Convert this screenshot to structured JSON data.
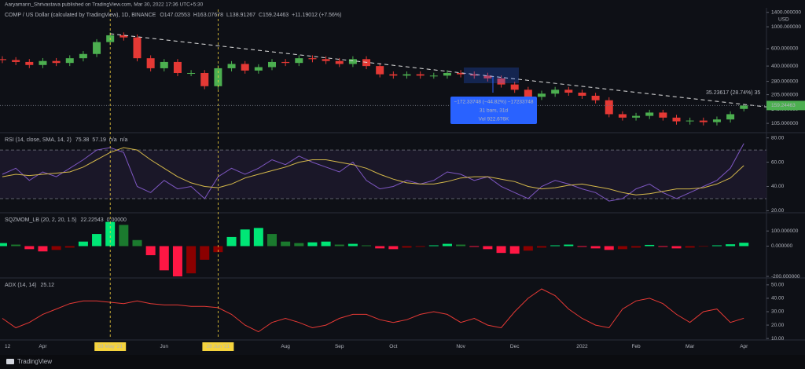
{
  "header": "Aaryamann_Shrivastava published on TradingView.com, Mar 30, 2022 17:36 UTC+5:30",
  "footer": "TradingView",
  "chart_data": [
    {
      "type": "candlestick",
      "title": "COMP / US Dollar (calculated by TradingView), 1D, BINANCE",
      "legend_values": [
        "O147.02553",
        "H163.07678",
        "L138.91267",
        "C159.24463",
        "+11.19012 (+7.56%)"
      ],
      "legend_colors": [
        "#4caf50",
        "#4caf50",
        "#4caf50",
        "#4caf50",
        "#4caf50"
      ],
      "categories": [
        "12",
        null,
        null,
        "Apr",
        null,
        null,
        null,
        null,
        "03 May '21",
        null,
        null,
        null,
        "Jun",
        null,
        null,
        null,
        "28 Jun '21",
        null,
        null,
        null,
        null,
        "Aug",
        null,
        null,
        null,
        "Sep",
        null,
        null,
        null,
        "Oct",
        null,
        null,
        null,
        null,
        "Nov",
        null,
        null,
        null,
        "Dec",
        null,
        null,
        null,
        null,
        "2022",
        null,
        null,
        null,
        "Feb",
        null,
        null,
        null,
        "Mar",
        null,
        null,
        null,
        "Apr"
      ],
      "highlight": [
        8,
        16
      ],
      "highlight_color": "#f5d33d",
      "open": [
        470,
        460,
        440,
        410,
        450,
        430,
        480,
        530,
        700,
        820,
        780,
        480,
        380,
        440,
        340,
        340,
        250,
        380,
        420,
        360,
        390,
        440,
        430,
        480,
        470,
        450,
        420,
        470,
        400,
        330,
        320,
        330,
        320,
        320,
        340,
        330,
        320,
        300,
        260,
        230,
        195,
        210,
        230,
        215,
        200,
        180,
        130,
        120,
        125,
        135,
        120,
        110,
        112,
        108,
        115,
        147.02553
      ],
      "high": [
        503,
        492,
        471,
        482,
        482,
        514,
        567,
        749,
        877,
        877,
        835,
        514,
        471,
        471,
        364,
        364,
        407,
        449,
        449,
        417,
        471,
        471,
        514,
        514,
        503,
        482,
        503,
        503,
        428,
        353,
        353,
        353,
        342,
        364,
        364,
        353,
        342,
        321,
        278,
        246,
        225,
        246,
        246,
        230,
        214,
        193,
        139,
        134,
        144,
        144,
        128,
        120,
        120,
        123,
        139,
        163.07678
      ],
      "low": [
        428,
        409,
        381,
        381,
        400,
        400,
        446,
        493,
        651,
        725,
        446,
        353,
        353,
        316,
        316,
        233,
        233,
        353,
        335,
        335,
        363,
        400,
        400,
        437,
        419,
        391,
        391,
        372,
        307,
        298,
        298,
        298,
        298,
        298,
        307,
        298,
        279,
        242,
        214,
        181,
        181,
        195,
        200,
        186,
        167,
        121,
        112,
        112,
        116,
        112,
        102,
        102,
        100,
        100,
        107,
        138.91267
      ],
      "close": [
        460,
        440,
        410,
        450,
        430,
        480,
        530,
        700,
        820,
        780,
        480,
        380,
        440,
        340,
        340,
        250,
        380,
        420,
        360,
        390,
        440,
        430,
        480,
        470,
        450,
        420,
        470,
        400,
        330,
        320,
        330,
        320,
        320,
        340,
        330,
        320,
        300,
        260,
        230,
        195,
        210,
        230,
        215,
        200,
        180,
        130,
        120,
        125,
        135,
        120,
        110,
        112,
        108,
        115,
        130,
        159.24463
      ],
      "up_color": "#4caf50",
      "down_color": "#e53935",
      "log_scale": true,
      "ylim": [
        86,
        1500
      ],
      "yticks": [
        {
          "value": 1400,
          "label": "1400.000000"
        },
        {
          "value": 1000,
          "label": "1000.000000"
        },
        {
          "value": 600,
          "label": "600.000000"
        },
        {
          "value": 400,
          "label": "400.000000"
        },
        {
          "value": 280,
          "label": "280.000000"
        },
        {
          "value": 205,
          "label": "205.000000"
        },
        {
          "value": 145,
          "label": "145.000000"
        },
        {
          "value": 105,
          "label": "105.000000"
        }
      ],
      "y_unit": "USD",
      "last_price_label": "159.24463",
      "trendline": {
        "x": [
          8,
          56.7
        ],
        "y": [
          850,
          154
        ],
        "color": "#e0e0e0"
      },
      "trend_label": "35.23617 (28.74%) 35",
      "measure": {
        "lines": [
          "−172.33748 (−44.82%) −17233748",
          "31 bars, 31d",
          "Vol 922.676K"
        ],
        "color": "#2962ff"
      },
      "grid": false
    },
    {
      "type": "line",
      "title": "RSI (14, close, SMA, 14, 2)",
      "legend_values": [
        "75.38",
        "57.19",
        "n/a",
        "n/a"
      ],
      "legend_colors": [
        "#7e57c2",
        "#d4b84a",
        "#787b86",
        "#787b86"
      ],
      "series": [
        {
          "color": "#7e57c2",
          "values": [
            50,
            55,
            45,
            52,
            48,
            55,
            62,
            70,
            72,
            68,
            40,
            35,
            45,
            38,
            40,
            30,
            48,
            55,
            50,
            55,
            62,
            58,
            65,
            60,
            56,
            52,
            60,
            45,
            38,
            40,
            45,
            42,
            45,
            52,
            50,
            45,
            48,
            40,
            35,
            30,
            40,
            45,
            42,
            38,
            35,
            28,
            30,
            38,
            42,
            35,
            30,
            35,
            40,
            45,
            55,
            75.38
          ]
        },
        {
          "color": "#d4b84a",
          "values": [
            48,
            50,
            49,
            50,
            51,
            52,
            56,
            62,
            68,
            72,
            70,
            62,
            55,
            48,
            43,
            40,
            39,
            42,
            47,
            50,
            53,
            56,
            60,
            62,
            62,
            60,
            58,
            55,
            50,
            46,
            43,
            42,
            42,
            44,
            47,
            48,
            48,
            46,
            44,
            40,
            38,
            39,
            41,
            42,
            40,
            38,
            35,
            33,
            34,
            36,
            38,
            38,
            39,
            42,
            47,
            57.19
          ]
        }
      ],
      "bands": [
        70,
        30
      ],
      "band_fill": "#1a1728",
      "ylim": [
        19,
        83
      ],
      "yticks": [
        {
          "value": 80,
          "label": "80.00"
        },
        {
          "value": 60,
          "label": "60.00"
        },
        {
          "value": 40,
          "label": "40.00"
        },
        {
          "value": 20,
          "label": "20.00"
        }
      ],
      "grid": false
    },
    {
      "type": "histogram",
      "title": "SQZMOM_LB (20, 2, 20, 1.5)",
      "legend_values": [
        "22.22543",
        "0.00000"
      ],
      "legend_colors": [
        "#00e676",
        "#787b86"
      ],
      "values": [
        20,
        10,
        -20,
        -35,
        -25,
        -10,
        30,
        80,
        160,
        140,
        40,
        -60,
        -160,
        -200,
        -180,
        -90,
        -40,
        60,
        110,
        120,
        80,
        30,
        20,
        25,
        30,
        10,
        15,
        5,
        -15,
        -20,
        -10,
        -5,
        5,
        15,
        10,
        -5,
        -20,
        -45,
        -50,
        -30,
        -10,
        5,
        10,
        -5,
        -15,
        -25,
        -20,
        -10,
        8,
        -5,
        -15,
        -10,
        -3,
        5,
        12,
        22.22543
      ],
      "colors": {
        "pos_rising": "#00e676",
        "pos_falling": "#1b7a2e",
        "neg_falling": "#ff1744",
        "neg_rising": "#8b0000"
      },
      "ylim": [
        -205,
        210
      ],
      "yticks": [
        {
          "value": 100,
          "label": "100.000000"
        },
        {
          "value": 0,
          "label": "0.000000"
        },
        {
          "value": -200,
          "label": "-200.000000"
        }
      ],
      "grid": false
    },
    {
      "type": "line",
      "title": "ADX (14, 14)",
      "legend_values": [
        "25.12"
      ],
      "legend_colors": [
        "#e53935"
      ],
      "series": [
        {
          "color": "#e53935",
          "values": [
            25,
            18,
            22,
            28,
            32,
            36,
            38,
            38,
            37,
            36,
            38,
            36,
            35,
            35,
            34,
            34,
            33,
            28,
            20,
            15,
            22,
            25,
            22,
            18,
            20,
            25,
            28,
            28,
            24,
            22,
            24,
            28,
            30,
            28,
            22,
            25,
            20,
            18,
            30,
            40,
            47,
            42,
            32,
            25,
            20,
            18,
            32,
            38,
            40,
            36,
            28,
            22,
            30,
            32,
            22,
            25.12
          ]
        }
      ],
      "ylim": [
        9.5,
        54
      ],
      "yticks": [
        {
          "value": 50,
          "label": "50.00"
        },
        {
          "value": 40,
          "label": "40.00"
        },
        {
          "value": 30,
          "label": "30.00"
        },
        {
          "value": 20,
          "label": "20.00"
        },
        {
          "value": 10,
          "label": "10.00"
        }
      ],
      "grid": false
    }
  ]
}
